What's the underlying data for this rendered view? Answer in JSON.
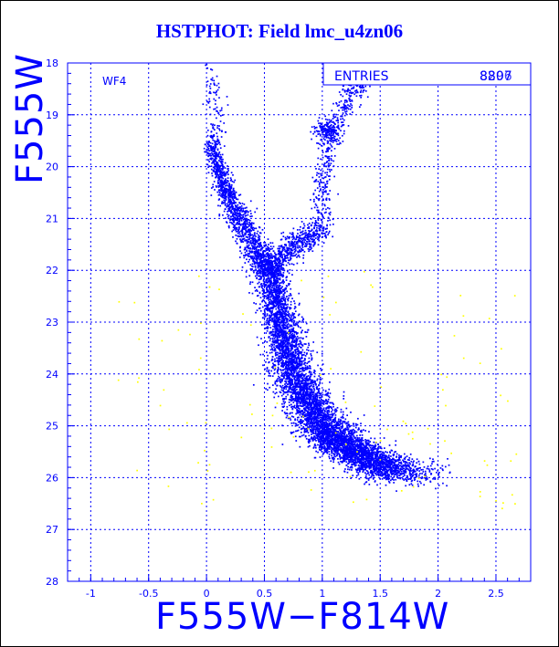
{
  "page": {
    "title": "HSTPHOT: Field lmc_u4zn06"
  },
  "chart_data": {
    "type": "scatter",
    "title": "HSTPHOT: Field lmc_u4zn06",
    "xlabel": "F555W−F814W",
    "ylabel": "F555W",
    "xlim": [
      -1.2,
      2.8
    ],
    "ylim": [
      28,
      18
    ],
    "y_inverted": true,
    "grid": true,
    "x_ticks": [
      "-1",
      "-0.5",
      "0",
      "0.5",
      "1",
      "1.5",
      "2",
      "2.5"
    ],
    "y_ticks": [
      "18",
      "19",
      "20",
      "21",
      "22",
      "23",
      "24",
      "25",
      "26",
      "27",
      "28"
    ],
    "panel_label": "WF4",
    "stats_box": {
      "label": "ENTRIES",
      "value": "8807",
      "overprint": "8296"
    },
    "series": [
      {
        "color": "#0000ff",
        "description": "stellar photometry (main sequence, turnoff, subgiant & red giant branch, red clump)",
        "components": [
          {
            "kind": "main_sequence",
            "path": [
              [
                0.55,
                22.0
              ],
              [
                0.62,
                22.8
              ],
              [
                0.7,
                23.5
              ],
              [
                0.78,
                24.1
              ],
              [
                0.88,
                24.6
              ],
              [
                1.0,
                25.0
              ],
              [
                1.15,
                25.3
              ],
              [
                1.35,
                25.6
              ],
              [
                1.6,
                25.9
              ]
            ],
            "count": 5200
          },
          {
            "kind": "turnoff_blue_plume",
            "path": [
              [
                0.05,
                19.5
              ],
              [
                0.12,
                20.2
              ],
              [
                0.22,
                20.8
              ],
              [
                0.35,
                21.3
              ],
              [
                0.48,
                21.8
              ],
              [
                0.55,
                22.0
              ]
            ],
            "count": 1500
          },
          {
            "kind": "bright_blue_stars",
            "path": [
              [
                0.02,
                18.0
              ],
              [
                0.06,
                18.6
              ],
              [
                0.1,
                19.1
              ],
              [
                0.12,
                19.6
              ]
            ],
            "count": 80
          },
          {
            "kind": "subgiant_branch",
            "path": [
              [
                0.55,
                21.9
              ],
              [
                0.7,
                21.6
              ],
              [
                0.85,
                21.4
              ],
              [
                0.98,
                21.2
              ]
            ],
            "count": 500
          },
          {
            "kind": "red_giant_branch",
            "path": [
              [
                0.98,
                21.3
              ],
              [
                1.0,
                20.5
              ],
              [
                1.03,
                19.8
              ],
              [
                1.1,
                19.2
              ],
              [
                1.22,
                18.7
              ],
              [
                1.35,
                18.3
              ]
            ],
            "count": 450
          },
          {
            "kind": "red_clump",
            "center": [
              1.05,
              19.3
            ],
            "spread": [
              0.06,
              0.1
            ],
            "count": 180
          },
          {
            "kind": "faint_red_tail",
            "path": [
              [
                1.0,
                25.2
              ],
              [
                1.3,
                25.5
              ],
              [
                1.6,
                25.8
              ],
              [
                1.9,
                25.95
              ]
            ],
            "count": 700
          }
        ]
      },
      {
        "color": "#ffff00",
        "description": "sparse field / flagged points",
        "components": [
          {
            "kind": "scatter",
            "xrange": [
              -0.8,
              2.7
            ],
            "yrange": [
              22.0,
              26.6
            ],
            "count": 110
          }
        ]
      }
    ]
  }
}
